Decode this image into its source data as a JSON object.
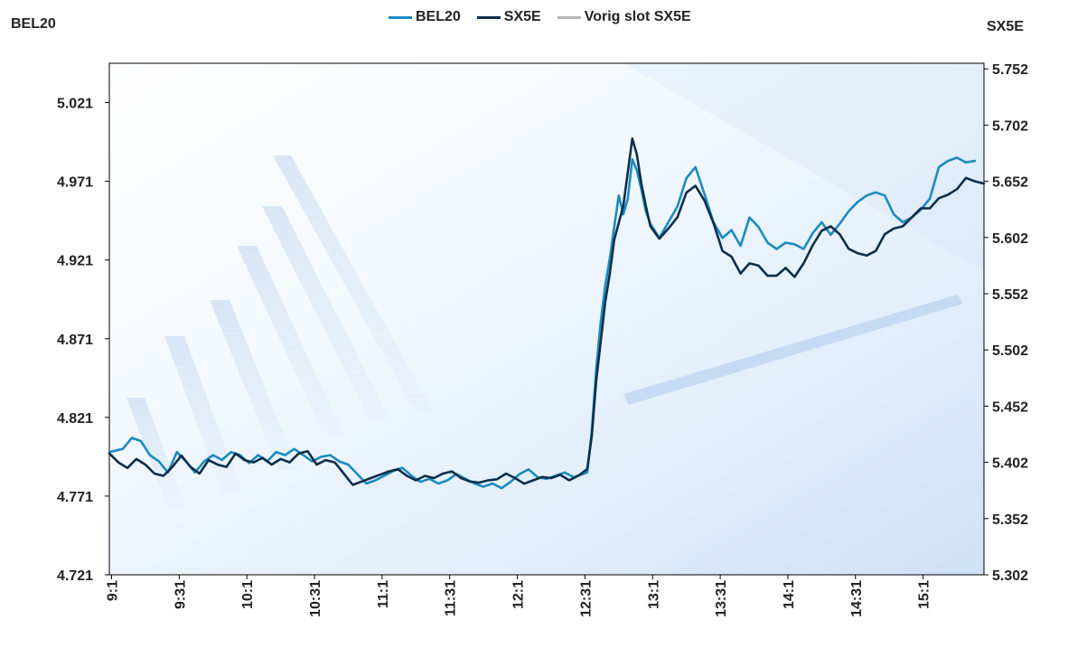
{
  "chart_data": {
    "type": "line",
    "left_axis_title": "BEL20",
    "right_axis_title": "SX5E",
    "legend": [
      {
        "label": "BEL20",
        "color": "#1a8cc0"
      },
      {
        "label": "SX5E",
        "color": "#0d2e4a"
      },
      {
        "label": "Vorig slot SX5E",
        "color": "#b5b5b5"
      }
    ],
    "legend_position": "top-center",
    "left_axis": {
      "ticks": [
        "5.021",
        "4.971",
        "4.921",
        "4.871",
        "4.821",
        "4.771",
        "4.721"
      ],
      "range": [
        4.721,
        5.046
      ]
    },
    "right_axis": {
      "ticks": [
        "5.752",
        "5.702",
        "5.652",
        "5.602",
        "5.552",
        "5.502",
        "5.452",
        "5.402",
        "5.352",
        "5.302"
      ],
      "range": [
        5.302,
        5.757
      ]
    },
    "x_ticks": [
      "9:1",
      "9:31",
      "10:1",
      "10:31",
      "11:1",
      "11:31",
      "12:1",
      "12:31",
      "13:1",
      "13:31",
      "14:1",
      "14:31",
      "15:1"
    ],
    "x_range": [
      0,
      388
    ],
    "x_unit": "minutes since 9:00",
    "series": [
      {
        "name": "BEL20",
        "axis": "left",
        "color": "#1a8cc0",
        "points": [
          [
            0,
            4.799
          ],
          [
            6,
            4.801
          ],
          [
            10,
            4.808
          ],
          [
            14,
            4.806
          ],
          [
            18,
            4.797
          ],
          [
            22,
            4.793
          ],
          [
            26,
            4.786
          ],
          [
            30,
            4.799
          ],
          [
            34,
            4.793
          ],
          [
            38,
            4.786
          ],
          [
            42,
            4.793
          ],
          [
            46,
            4.797
          ],
          [
            50,
            4.794
          ],
          [
            54,
            4.799
          ],
          [
            58,
            4.797
          ],
          [
            62,
            4.792
          ],
          [
            66,
            4.797
          ],
          [
            70,
            4.793
          ],
          [
            74,
            4.799
          ],
          [
            78,
            4.797
          ],
          [
            82,
            4.801
          ],
          [
            86,
            4.797
          ],
          [
            90,
            4.793
          ],
          [
            94,
            4.796
          ],
          [
            98,
            4.797
          ],
          [
            102,
            4.793
          ],
          [
            106,
            4.791
          ],
          [
            110,
            4.785
          ],
          [
            114,
            4.779
          ],
          [
            118,
            4.781
          ],
          [
            122,
            4.784
          ],
          [
            126,
            4.787
          ],
          [
            130,
            4.789
          ],
          [
            134,
            4.784
          ],
          [
            138,
            4.78
          ],
          [
            142,
            4.782
          ],
          [
            146,
            4.779
          ],
          [
            150,
            4.781
          ],
          [
            154,
            4.785
          ],
          [
            158,
            4.782
          ],
          [
            162,
            4.779
          ],
          [
            166,
            4.777
          ],
          [
            170,
            4.779
          ],
          [
            174,
            4.776
          ],
          [
            178,
            4.78
          ],
          [
            182,
            4.785
          ],
          [
            186,
            4.788
          ],
          [
            190,
            4.783
          ],
          [
            194,
            4.782
          ],
          [
            198,
            4.784
          ],
          [
            202,
            4.786
          ],
          [
            206,
            4.783
          ],
          [
            210,
            4.785
          ],
          [
            212,
            4.786
          ],
          [
            214,
            4.812
          ],
          [
            216,
            4.852
          ],
          [
            218,
            4.882
          ],
          [
            220,
            4.905
          ],
          [
            222,
            4.922
          ],
          [
            224,
            4.942
          ],
          [
            226,
            4.962
          ],
          [
            228,
            4.95
          ],
          [
            230,
            4.96
          ],
          [
            232,
            4.985
          ],
          [
            234,
            4.978
          ],
          [
            236,
            4.966
          ],
          [
            238,
            4.952
          ],
          [
            240,
            4.944
          ],
          [
            244,
            4.935
          ],
          [
            248,
            4.945
          ],
          [
            252,
            4.955
          ],
          [
            256,
            4.973
          ],
          [
            260,
            4.98
          ],
          [
            264,
            4.963
          ],
          [
            268,
            4.945
          ],
          [
            272,
            4.935
          ],
          [
            276,
            4.94
          ],
          [
            280,
            4.93
          ],
          [
            284,
            4.948
          ],
          [
            288,
            4.942
          ],
          [
            292,
            4.932
          ],
          [
            296,
            4.928
          ],
          [
            300,
            4.932
          ],
          [
            304,
            4.931
          ],
          [
            308,
            4.928
          ],
          [
            312,
            4.938
          ],
          [
            316,
            4.945
          ],
          [
            320,
            4.937
          ],
          [
            324,
            4.944
          ],
          [
            328,
            4.952
          ],
          [
            332,
            4.958
          ],
          [
            336,
            4.962
          ],
          [
            340,
            4.964
          ],
          [
            344,
            4.962
          ],
          [
            348,
            4.95
          ],
          [
            352,
            4.945
          ],
          [
            356,
            4.948
          ],
          [
            360,
            4.953
          ],
          [
            364,
            4.96
          ],
          [
            368,
            4.98
          ],
          [
            372,
            4.984
          ],
          [
            376,
            4.986
          ],
          [
            380,
            4.983
          ],
          [
            384,
            4.984
          ]
        ]
      },
      {
        "name": "SX5E",
        "axis": "right",
        "color": "#0d2e4a",
        "points": [
          [
            0,
            5.41
          ],
          [
            4,
            5.402
          ],
          [
            8,
            5.397
          ],
          [
            12,
            5.405
          ],
          [
            16,
            5.4
          ],
          [
            20,
            5.392
          ],
          [
            24,
            5.39
          ],
          [
            28,
            5.398
          ],
          [
            32,
            5.408
          ],
          [
            36,
            5.398
          ],
          [
            40,
            5.392
          ],
          [
            44,
            5.404
          ],
          [
            48,
            5.4
          ],
          [
            52,
            5.398
          ],
          [
            56,
            5.41
          ],
          [
            60,
            5.404
          ],
          [
            64,
            5.402
          ],
          [
            68,
            5.406
          ],
          [
            72,
            5.4
          ],
          [
            76,
            5.405
          ],
          [
            80,
            5.402
          ],
          [
            84,
            5.41
          ],
          [
            88,
            5.412
          ],
          [
            92,
            5.4
          ],
          [
            96,
            5.404
          ],
          [
            100,
            5.402
          ],
          [
            104,
            5.392
          ],
          [
            108,
            5.382
          ],
          [
            112,
            5.385
          ],
          [
            116,
            5.388
          ],
          [
            120,
            5.391
          ],
          [
            124,
            5.394
          ],
          [
            128,
            5.396
          ],
          [
            132,
            5.39
          ],
          [
            136,
            5.386
          ],
          [
            140,
            5.39
          ],
          [
            144,
            5.388
          ],
          [
            148,
            5.392
          ],
          [
            152,
            5.394
          ],
          [
            156,
            5.388
          ],
          [
            160,
            5.385
          ],
          [
            164,
            5.384
          ],
          [
            168,
            5.386
          ],
          [
            172,
            5.387
          ],
          [
            176,
            5.392
          ],
          [
            180,
            5.388
          ],
          [
            184,
            5.383
          ],
          [
            188,
            5.386
          ],
          [
            192,
            5.389
          ],
          [
            196,
            5.388
          ],
          [
            200,
            5.391
          ],
          [
            204,
            5.386
          ],
          [
            208,
            5.39
          ],
          [
            212,
            5.396
          ],
          [
            214,
            5.425
          ],
          [
            216,
            5.475
          ],
          [
            218,
            5.51
          ],
          [
            220,
            5.545
          ],
          [
            222,
            5.57
          ],
          [
            224,
            5.6
          ],
          [
            226,
            5.615
          ],
          [
            228,
            5.63
          ],
          [
            230,
            5.66
          ],
          [
            232,
            5.69
          ],
          [
            234,
            5.676
          ],
          [
            236,
            5.65
          ],
          [
            238,
            5.63
          ],
          [
            240,
            5.612
          ],
          [
            244,
            5.601
          ],
          [
            248,
            5.61
          ],
          [
            252,
            5.62
          ],
          [
            256,
            5.642
          ],
          [
            260,
            5.648
          ],
          [
            264,
            5.635
          ],
          [
            268,
            5.615
          ],
          [
            272,
            5.59
          ],
          [
            276,
            5.585
          ],
          [
            280,
            5.57
          ],
          [
            284,
            5.579
          ],
          [
            288,
            5.577
          ],
          [
            292,
            5.568
          ],
          [
            296,
            5.568
          ],
          [
            300,
            5.575
          ],
          [
            304,
            5.567
          ],
          [
            308,
            5.579
          ],
          [
            312,
            5.595
          ],
          [
            316,
            5.608
          ],
          [
            320,
            5.612
          ],
          [
            324,
            5.605
          ],
          [
            328,
            5.592
          ],
          [
            332,
            5.588
          ],
          [
            336,
            5.586
          ],
          [
            340,
            5.59
          ],
          [
            344,
            5.605
          ],
          [
            348,
            5.61
          ],
          [
            352,
            5.612
          ],
          [
            356,
            5.62
          ],
          [
            360,
            5.628
          ],
          [
            364,
            5.628
          ],
          [
            368,
            5.637
          ],
          [
            372,
            5.64
          ],
          [
            376,
            5.645
          ],
          [
            380,
            5.655
          ],
          [
            384,
            5.652
          ],
          [
            388,
            5.65
          ]
        ]
      },
      {
        "name": "Vorig slot SX5E",
        "axis": "right",
        "color": "#b5b5b5",
        "points": []
      }
    ]
  }
}
